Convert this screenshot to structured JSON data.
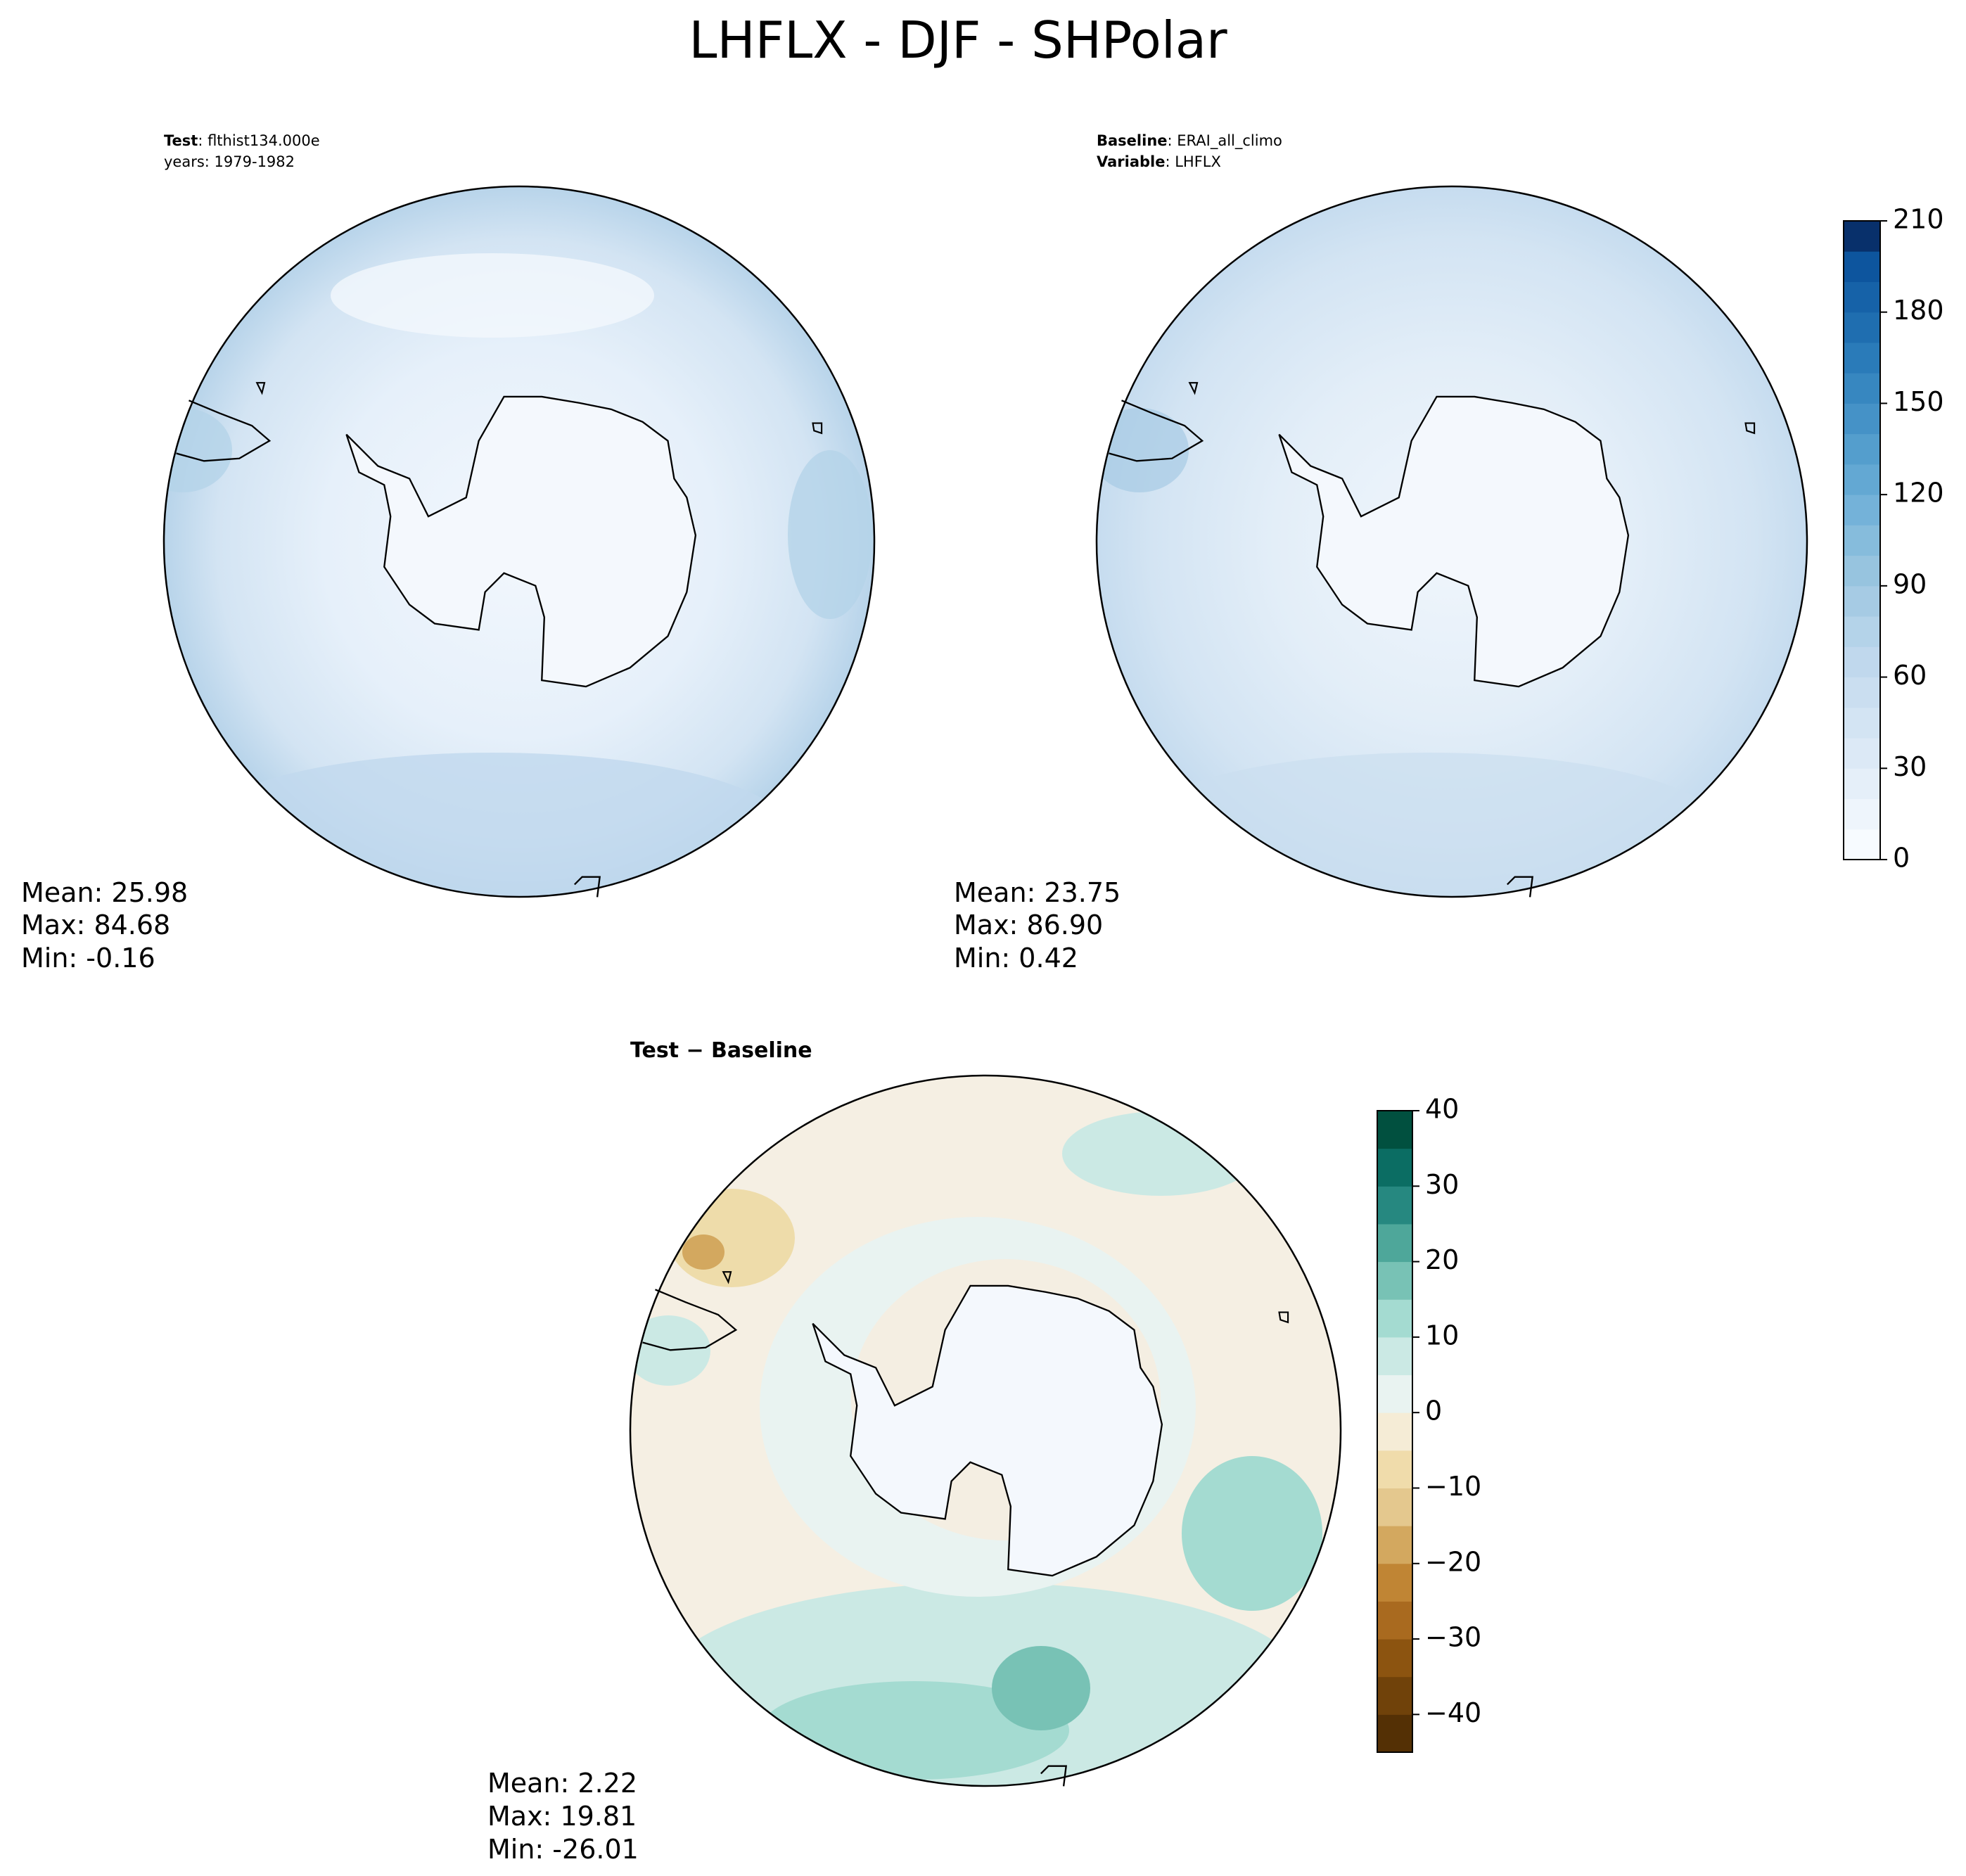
{
  "title": "LHFLX - DJF - SHPolar",
  "panels": [
    {
      "label": [
        "Test",
        ": flthist134.000e"
      ],
      "label_line2": "years: 1979-1982",
      "stats": [
        "Mean: 25.98",
        "Max: 84.68",
        "Min: -0.16"
      ]
    },
    {
      "label": [
        "Baseline",
        ": ERAI_all_climo"
      ],
      "label_line2": [
        "Variable",
        ": LHFLX"
      ],
      "stats": [
        "Mean: 23.75",
        "Max: 86.90",
        "Min:  0.42"
      ]
    },
    {
      "label": "Test − Baseline",
      "stats": [
        "Mean:  2.22",
        "Max: 19.81",
        "Min: -26.01"
      ]
    }
  ],
  "colorbars": [
    {
      "lim": [
        0,
        210
      ],
      "ticks": [
        0,
        30,
        60,
        90,
        120,
        150,
        180,
        210
      ],
      "colors": [
        "#f7fbff",
        "#eef5fc",
        "#e5eff9",
        "#dce9f6",
        "#d3e4f3",
        "#cadef0",
        "#c0d8ed",
        "#b4d3e9",
        "#a6cbe4",
        "#97c4df",
        "#86bcdc",
        "#74b2d9",
        "#63a8d3",
        "#549ecd",
        "#4592c7",
        "#3787c0",
        "#2a7bb9",
        "#1f6eb0",
        "#1662a8",
        "#0d559e",
        "#08306b"
      ]
    },
    {
      "lim": [
        -45,
        40
      ],
      "ticks": [
        {
          "value": -40,
          "label": "−40"
        },
        {
          "value": -30,
          "label": "−30"
        },
        {
          "value": -20,
          "label": "−20"
        },
        {
          "value": -10,
          "label": "−10"
        },
        0,
        10,
        20,
        30,
        40
      ],
      "colors": [
        "#543005",
        "#70420a",
        "#8c5410",
        "#a96a1f",
        "#c08534",
        "#d3a85f",
        "#e4c88e",
        "#f0dcab",
        "#f5ecd6",
        "#e9f3f1",
        "#cbe9e4",
        "#a4dbd1",
        "#78c2b5",
        "#4ea79a",
        "#268880",
        "#0b6d63",
        "#01503f"
      ]
    }
  ]
}
